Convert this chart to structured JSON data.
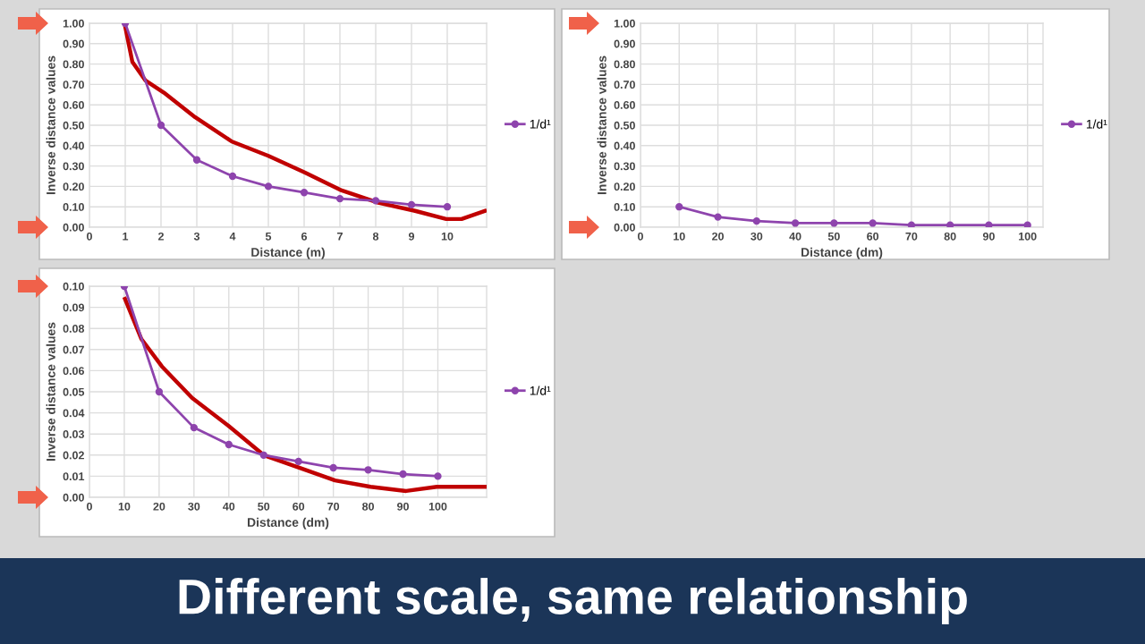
{
  "chart_data": [
    {
      "type": "line",
      "xlabel": "Distance (m)",
      "ylabel": "Inverse distance values",
      "title": "Different scale, same relationship",
      "xlim": [
        0,
        11.1
      ],
      "xticks": [
        0,
        1,
        2,
        3,
        4,
        5,
        6,
        7,
        8,
        9,
        10
      ],
      "ylim": [
        0,
        1
      ],
      "yticks": [
        {
          "value": 0,
          "label": "0.00"
        },
        {
          "value": 0.1,
          "label": "0.10"
        },
        {
          "value": 0.2,
          "label": "0.20"
        },
        {
          "value": 0.3,
          "label": "0.30"
        },
        {
          "value": 0.4,
          "label": "0.40"
        },
        {
          "value": 0.5,
          "label": "0.50"
        },
        {
          "value": 0.6,
          "label": "0.60"
        },
        {
          "value": 0.7,
          "label": "0.70"
        },
        {
          "value": 0.8,
          "label": "0.80"
        },
        {
          "value": 0.9,
          "label": "0.90"
        },
        {
          "value": 1,
          "label": "1.00"
        }
      ],
      "grid": true,
      "legend": "right",
      "series": [
        {
          "name": "1/d¹",
          "color": "#8e44ad",
          "marker": "circle",
          "x": [
            1,
            2,
            3,
            4,
            5,
            6,
            7,
            8,
            9,
            10
          ],
          "values": [
            1.0,
            0.5,
            0.33,
            0.25,
            0.2,
            0.17,
            0.14,
            0.13,
            0.11,
            0.1
          ]
        },
        {
          "color": "#c00000",
          "marker": "none",
          "x": [
            0.98,
            1.2,
            1.56,
            2.08,
            2.95,
            3.98,
            5.0,
            6.0,
            7.05,
            8.07,
            9.1,
            9.97,
            10.4,
            11.05
          ],
          "values": [
            1.0,
            0.81,
            0.72,
            0.66,
            0.54,
            0.42,
            0.35,
            0.27,
            0.18,
            0.12,
            0.08,
            0.04,
            0.04,
            0.08
          ]
        }
      ]
    },
    {
      "type": "line",
      "xlabel": "Distance (dm)",
      "ylabel": "Inverse distance values",
      "xlim": [
        0,
        104
      ],
      "xticks": [
        0,
        10,
        20,
        30,
        40,
        50,
        60,
        70,
        80,
        90,
        100
      ],
      "ylim": [
        0,
        1
      ],
      "yticks": [
        {
          "value": 0,
          "label": "0.00"
        },
        {
          "value": 0.1,
          "label": "0.10"
        },
        {
          "value": 0.2,
          "label": "0.20"
        },
        {
          "value": 0.3,
          "label": "0.30"
        },
        {
          "value": 0.4,
          "label": "0.40"
        },
        {
          "value": 0.5,
          "label": "0.50"
        },
        {
          "value": 0.6,
          "label": "0.60"
        },
        {
          "value": 0.7,
          "label": "0.70"
        },
        {
          "value": 0.8,
          "label": "0.80"
        },
        {
          "value": 0.9,
          "label": "0.90"
        },
        {
          "value": 1,
          "label": "1.00"
        }
      ],
      "grid": true,
      "legend": "right",
      "series": [
        {
          "name": "1/d¹",
          "color": "#8e44ad",
          "marker": "circle",
          "x": [
            10,
            20,
            30,
            40,
            50,
            60,
            70,
            80,
            90,
            100
          ],
          "values": [
            0.1,
            0.05,
            0.03,
            0.02,
            0.02,
            0.02,
            0.01,
            0.01,
            0.01,
            0.01
          ]
        }
      ]
    },
    {
      "type": "line",
      "xlabel": "Distance (dm)",
      "ylabel": "Inverse distance values",
      "xlim": [
        0,
        114
      ],
      "xticks": [
        0,
        10,
        20,
        30,
        40,
        50,
        60,
        70,
        80,
        90,
        100
      ],
      "ylim": [
        0,
        0.1
      ],
      "yticks": [
        {
          "value": 0,
          "label": "0.00"
        },
        {
          "value": 0.01,
          "label": "0.01"
        },
        {
          "value": 0.02,
          "label": "0.02"
        },
        {
          "value": 0.03,
          "label": "0.03"
        },
        {
          "value": 0.04,
          "label": "0.04"
        },
        {
          "value": 0.05,
          "label": "0.05"
        },
        {
          "value": 0.06,
          "label": "0.06"
        },
        {
          "value": 0.07,
          "label": "0.07"
        },
        {
          "value": 0.08,
          "label": "0.08"
        },
        {
          "value": 0.09,
          "label": "0.09"
        },
        {
          "value": 0.1,
          "label": "0.10"
        }
      ],
      "grid": true,
      "legend": "right",
      "series": [
        {
          "name": "1/d¹",
          "color": "#8e44ad",
          "marker": "circle",
          "x": [
            10,
            20,
            30,
            40,
            50,
            60,
            70,
            80,
            90,
            100
          ],
          "values": [
            0.1,
            0.05,
            0.033,
            0.025,
            0.02,
            0.017,
            0.014,
            0.013,
            0.011,
            0.01
          ]
        },
        {
          "color": "#c00000",
          "marker": "none",
          "x": [
            10.2,
            14.9,
            20.8,
            29.5,
            39.8,
            50,
            60.2,
            70.5,
            80.7,
            90.9,
            99.7,
            114
          ],
          "values": [
            0.094,
            0.075,
            0.062,
            0.047,
            0.034,
            0.02,
            0.014,
            0.008,
            0.005,
            0.003,
            0.005,
            0.005
          ]
        }
      ]
    }
  ]
}
